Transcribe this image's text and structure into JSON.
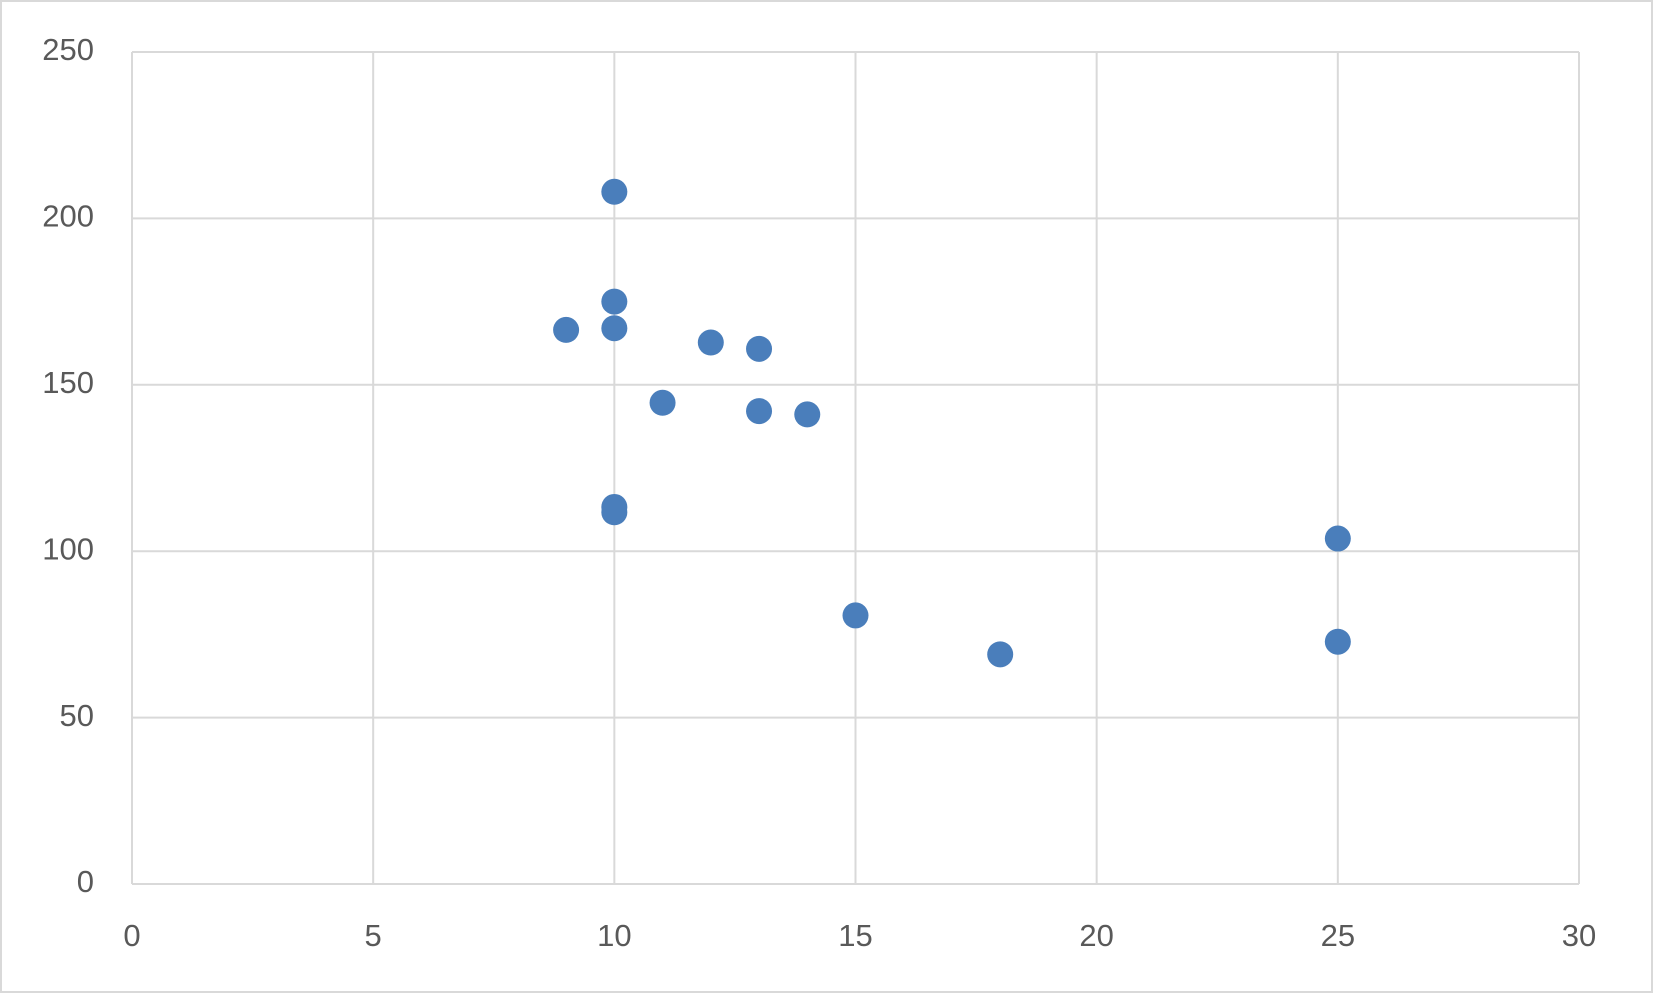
{
  "chart_data": {
    "type": "scatter",
    "x": [
      10,
      10,
      9,
      10,
      12,
      13,
      11,
      13,
      14,
      10,
      10,
      25,
      15,
      25,
      18
    ],
    "values": [
      208,
      175,
      166.5,
      167,
      162.7,
      160.8,
      144.6,
      142.1,
      141.1,
      113.3,
      111.7,
      103.8,
      80.7,
      72.8,
      69
    ],
    "color": "#4a7ebb",
    "xlim": [
      0,
      30
    ],
    "xticks": [
      0,
      5,
      10,
      15,
      20,
      25,
      30
    ],
    "ylim": [
      0,
      250
    ],
    "yticks": [
      0,
      50,
      100,
      150,
      200,
      250
    ],
    "grid": true
  }
}
